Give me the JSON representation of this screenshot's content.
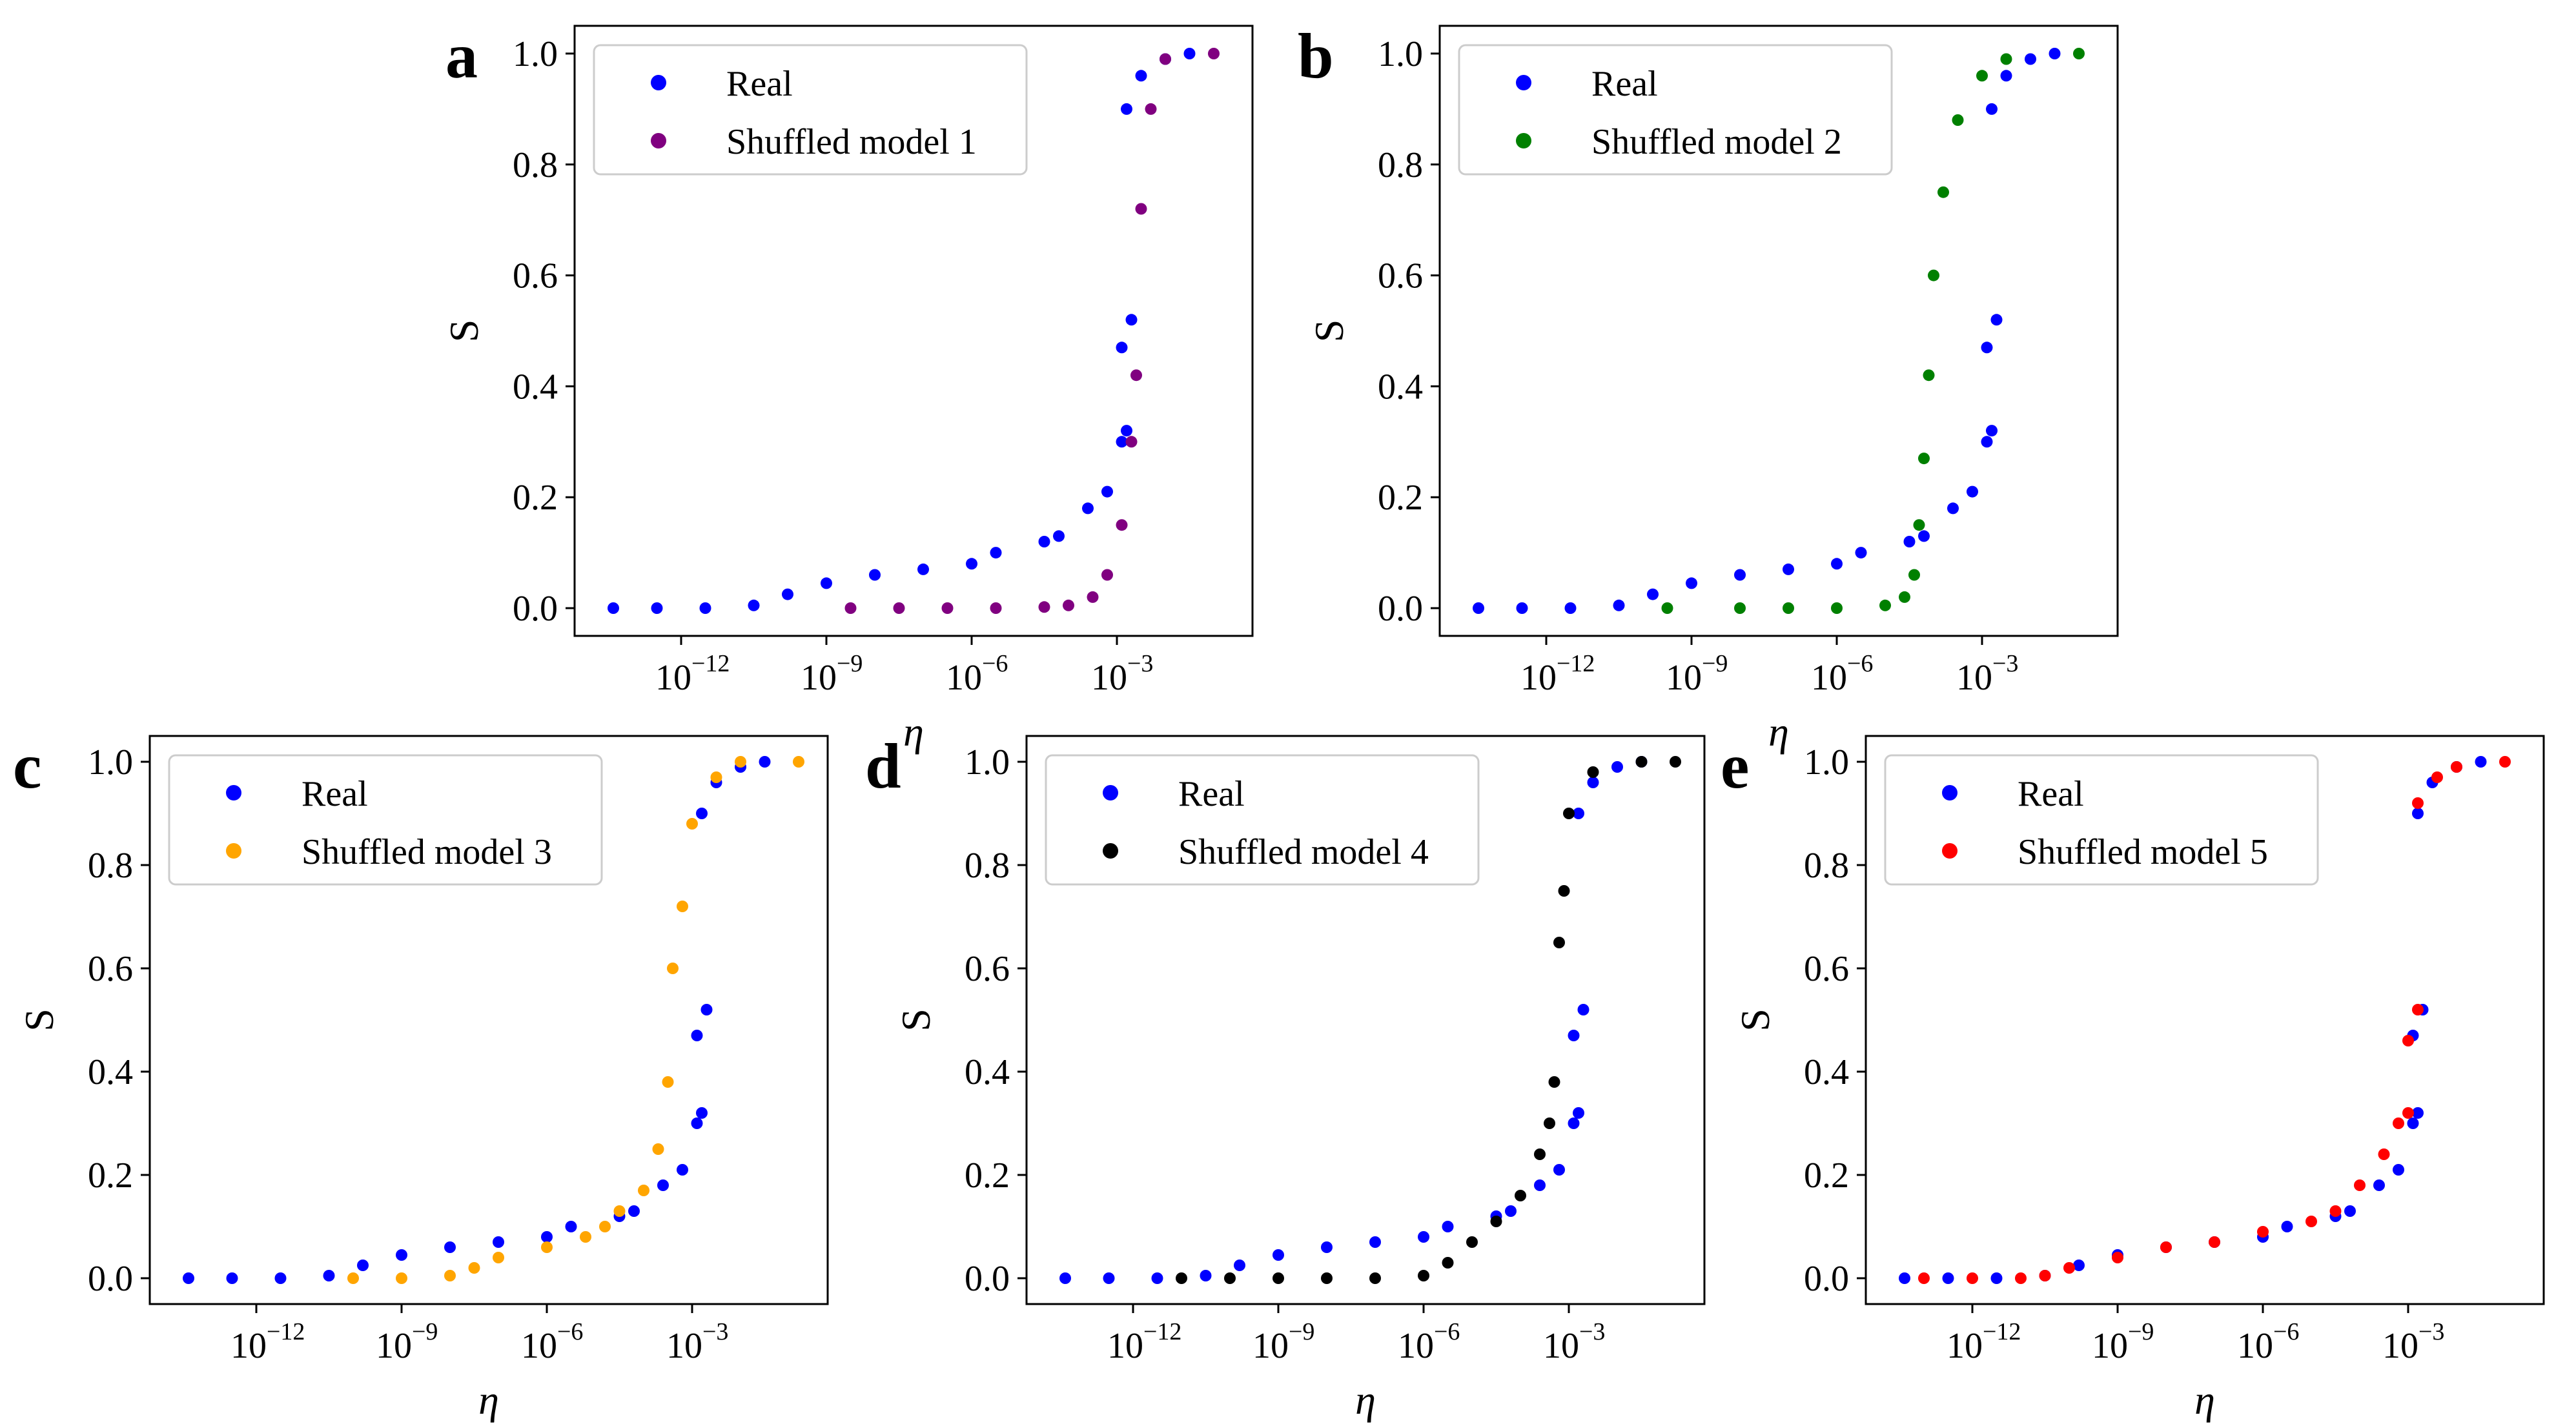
{
  "chart_data": [
    {
      "type": "scatter",
      "panel": "a",
      "xlabel": "η",
      "ylabel": "S",
      "xscale": "log",
      "xlim_log10": [
        -14.2,
        -0.2
      ],
      "ylim": [
        -0.05,
        1.05
      ],
      "x_ticks": [
        {
          "base": "10",
          "exp": "−12",
          "value": -12
        },
        {
          "base": "10",
          "exp": "−9",
          "value": -9
        },
        {
          "base": "10",
          "exp": "−6",
          "value": -6
        },
        {
          "base": "10",
          "exp": "−3",
          "value": -3
        }
      ],
      "y_ticks": [
        "0.0",
        "0.2",
        "0.4",
        "0.6",
        "0.8",
        "1.0"
      ],
      "series": [
        {
          "name": "Real",
          "color": "#0000ff",
          "points": [
            [
              -13.4,
              0.0
            ],
            [
              -12.5,
              0.0
            ],
            [
              -11.5,
              0.0
            ],
            [
              -10.5,
              0.005
            ],
            [
              -9.8,
              0.025
            ],
            [
              -9.0,
              0.045
            ],
            [
              -8.0,
              0.06
            ],
            [
              -7.0,
              0.07
            ],
            [
              -6.0,
              0.08
            ],
            [
              -5.5,
              0.1
            ],
            [
              -4.5,
              0.12
            ],
            [
              -4.2,
              0.13
            ],
            [
              -3.6,
              0.18
            ],
            [
              -3.2,
              0.21
            ],
            [
              -2.9,
              0.3
            ],
            [
              -2.8,
              0.32
            ],
            [
              -2.9,
              0.47
            ],
            [
              -2.7,
              0.52
            ],
            [
              -2.8,
              0.9
            ],
            [
              -2.5,
              0.96
            ],
            [
              -2.0,
              0.99
            ],
            [
              -1.5,
              1.0
            ]
          ]
        },
        {
          "name": "Shuffled model 1",
          "color": "#800080",
          "points": [
            [
              -8.5,
              0.0
            ],
            [
              -7.5,
              0.0
            ],
            [
              -6.5,
              0.0
            ],
            [
              -5.5,
              0.0
            ],
            [
              -4.5,
              0.002
            ],
            [
              -4.0,
              0.005
            ],
            [
              -3.5,
              0.02
            ],
            [
              -3.2,
              0.06
            ],
            [
              -2.9,
              0.15
            ],
            [
              -2.7,
              0.3
            ],
            [
              -2.6,
              0.42
            ],
            [
              -2.5,
              0.72
            ],
            [
              -2.3,
              0.9
            ],
            [
              -2.0,
              0.99
            ],
            [
              -1.0,
              1.0
            ]
          ]
        }
      ],
      "legend": [
        "Real",
        "Shuffled model 1"
      ],
      "legend_loc": "upper left"
    },
    {
      "type": "scatter",
      "panel": "b",
      "xlabel": "η",
      "ylabel": "S",
      "xscale": "log",
      "xlim_log10": [
        -14.2,
        -0.2
      ],
      "ylim": [
        -0.05,
        1.05
      ],
      "x_ticks": [
        {
          "base": "10",
          "exp": "−12",
          "value": -12
        },
        {
          "base": "10",
          "exp": "−9",
          "value": -9
        },
        {
          "base": "10",
          "exp": "−6",
          "value": -6
        },
        {
          "base": "10",
          "exp": "−3",
          "value": -3
        }
      ],
      "y_ticks": [
        "0.0",
        "0.2",
        "0.4",
        "0.6",
        "0.8",
        "1.0"
      ],
      "series": [
        {
          "name": "Real",
          "color": "#0000ff",
          "points": [
            [
              -13.4,
              0.0
            ],
            [
              -12.5,
              0.0
            ],
            [
              -11.5,
              0.0
            ],
            [
              -10.5,
              0.005
            ],
            [
              -9.8,
              0.025
            ],
            [
              -9.0,
              0.045
            ],
            [
              -8.0,
              0.06
            ],
            [
              -7.0,
              0.07
            ],
            [
              -6.0,
              0.08
            ],
            [
              -5.5,
              0.1
            ],
            [
              -4.5,
              0.12
            ],
            [
              -4.2,
              0.13
            ],
            [
              -3.6,
              0.18
            ],
            [
              -3.2,
              0.21
            ],
            [
              -2.9,
              0.3
            ],
            [
              -2.8,
              0.32
            ],
            [
              -2.9,
              0.47
            ],
            [
              -2.7,
              0.52
            ],
            [
              -2.8,
              0.9
            ],
            [
              -2.5,
              0.96
            ],
            [
              -2.0,
              0.99
            ],
            [
              -1.5,
              1.0
            ]
          ]
        },
        {
          "name": "Shuffled model 2",
          "color": "#008000",
          "points": [
            [
              -9.5,
              0.0
            ],
            [
              -8.0,
              0.0
            ],
            [
              -7.0,
              0.0
            ],
            [
              -6.0,
              0.0
            ],
            [
              -5.0,
              0.005
            ],
            [
              -4.6,
              0.02
            ],
            [
              -4.4,
              0.06
            ],
            [
              -4.3,
              0.15
            ],
            [
              -4.2,
              0.27
            ],
            [
              -4.1,
              0.42
            ],
            [
              -4.0,
              0.6
            ],
            [
              -3.8,
              0.75
            ],
            [
              -3.5,
              0.88
            ],
            [
              -3.0,
              0.96
            ],
            [
              -2.5,
              0.99
            ],
            [
              -1.0,
              1.0
            ]
          ]
        }
      ],
      "legend": [
        "Real",
        "Shuffled model 2"
      ],
      "legend_loc": "upper left"
    },
    {
      "type": "scatter",
      "panel": "c",
      "xlabel": "η",
      "ylabel": "S",
      "xscale": "log",
      "xlim_log10": [
        -14.2,
        -0.2
      ],
      "ylim": [
        -0.05,
        1.05
      ],
      "x_ticks": [
        {
          "base": "10",
          "exp": "−12",
          "value": -12
        },
        {
          "base": "10",
          "exp": "−9",
          "value": -9
        },
        {
          "base": "10",
          "exp": "−6",
          "value": -6
        },
        {
          "base": "10",
          "exp": "−3",
          "value": -3
        }
      ],
      "y_ticks": [
        "0.0",
        "0.2",
        "0.4",
        "0.6",
        "0.8",
        "1.0"
      ],
      "series": [
        {
          "name": "Real",
          "color": "#0000ff",
          "points": [
            [
              -13.4,
              0.0
            ],
            [
              -12.5,
              0.0
            ],
            [
              -11.5,
              0.0
            ],
            [
              -10.5,
              0.005
            ],
            [
              -9.8,
              0.025
            ],
            [
              -9.0,
              0.045
            ],
            [
              -8.0,
              0.06
            ],
            [
              -7.0,
              0.07
            ],
            [
              -6.0,
              0.08
            ],
            [
              -5.5,
              0.1
            ],
            [
              -4.5,
              0.12
            ],
            [
              -4.2,
              0.13
            ],
            [
              -3.6,
              0.18
            ],
            [
              -3.2,
              0.21
            ],
            [
              -2.9,
              0.3
            ],
            [
              -2.8,
              0.32
            ],
            [
              -2.9,
              0.47
            ],
            [
              -2.7,
              0.52
            ],
            [
              -2.8,
              0.9
            ],
            [
              -2.5,
              0.96
            ],
            [
              -2.0,
              0.99
            ],
            [
              -1.5,
              1.0
            ]
          ]
        },
        {
          "name": "Shuffled model 3",
          "color": "#ffa500",
          "points": [
            [
              -10.0,
              0.0
            ],
            [
              -9.0,
              0.0
            ],
            [
              -8.0,
              0.005
            ],
            [
              -7.5,
              0.02
            ],
            [
              -7.0,
              0.04
            ],
            [
              -6.0,
              0.06
            ],
            [
              -5.2,
              0.08
            ],
            [
              -4.8,
              0.1
            ],
            [
              -4.5,
              0.13
            ],
            [
              -4.0,
              0.17
            ],
            [
              -3.7,
              0.25
            ],
            [
              -3.5,
              0.38
            ],
            [
              -3.4,
              0.6
            ],
            [
              -3.2,
              0.72
            ],
            [
              -3.0,
              0.88
            ],
            [
              -2.5,
              0.97
            ],
            [
              -2.0,
              1.0
            ],
            [
              -0.8,
              1.0
            ]
          ]
        }
      ],
      "legend": [
        "Real",
        "Shuffled model 3"
      ],
      "legend_loc": "upper left"
    },
    {
      "type": "scatter",
      "panel": "d",
      "xlabel": "η",
      "ylabel": "S",
      "xscale": "log",
      "xlim_log10": [
        -14.2,
        -0.2
      ],
      "ylim": [
        -0.05,
        1.05
      ],
      "x_ticks": [
        {
          "base": "10",
          "exp": "−12",
          "value": -12
        },
        {
          "base": "10",
          "exp": "−9",
          "value": -9
        },
        {
          "base": "10",
          "exp": "−6",
          "value": -6
        },
        {
          "base": "10",
          "exp": "−3",
          "value": -3
        }
      ],
      "y_ticks": [
        "0.0",
        "0.2",
        "0.4",
        "0.6",
        "0.8",
        "1.0"
      ],
      "series": [
        {
          "name": "Real",
          "color": "#0000ff",
          "points": [
            [
              -13.4,
              0.0
            ],
            [
              -12.5,
              0.0
            ],
            [
              -11.5,
              0.0
            ],
            [
              -10.5,
              0.005
            ],
            [
              -9.8,
              0.025
            ],
            [
              -9.0,
              0.045
            ],
            [
              -8.0,
              0.06
            ],
            [
              -7.0,
              0.07
            ],
            [
              -6.0,
              0.08
            ],
            [
              -5.5,
              0.1
            ],
            [
              -4.5,
              0.12
            ],
            [
              -4.2,
              0.13
            ],
            [
              -3.6,
              0.18
            ],
            [
              -3.2,
              0.21
            ],
            [
              -2.9,
              0.3
            ],
            [
              -2.8,
              0.32
            ],
            [
              -2.9,
              0.47
            ],
            [
              -2.7,
              0.52
            ],
            [
              -2.8,
              0.9
            ],
            [
              -2.5,
              0.96
            ],
            [
              -2.0,
              0.99
            ],
            [
              -1.5,
              1.0
            ]
          ]
        },
        {
          "name": "Shuffled model 4",
          "color": "#000000",
          "points": [
            [
              -11.0,
              0.0
            ],
            [
              -10.0,
              0.0
            ],
            [
              -9.0,
              0.0
            ],
            [
              -8.0,
              0.0
            ],
            [
              -7.0,
              0.0
            ],
            [
              -6.0,
              0.005
            ],
            [
              -5.5,
              0.03
            ],
            [
              -5.0,
              0.07
            ],
            [
              -4.5,
              0.11
            ],
            [
              -4.0,
              0.16
            ],
            [
              -3.6,
              0.24
            ],
            [
              -3.4,
              0.3
            ],
            [
              -3.3,
              0.38
            ],
            [
              -3.2,
              0.65
            ],
            [
              -3.1,
              0.75
            ],
            [
              -3.0,
              0.9
            ],
            [
              -2.5,
              0.98
            ],
            [
              -1.5,
              1.0
            ],
            [
              -0.8,
              1.0
            ]
          ]
        }
      ],
      "legend": [
        "Real",
        "Shuffled model 4"
      ],
      "legend_loc": "upper left"
    },
    {
      "type": "scatter",
      "panel": "e",
      "xlabel": "η",
      "ylabel": "S",
      "xscale": "log",
      "xlim_log10": [
        -14.2,
        -0.2
      ],
      "ylim": [
        -0.05,
        1.05
      ],
      "x_ticks": [
        {
          "base": "10",
          "exp": "−12",
          "value": -12
        },
        {
          "base": "10",
          "exp": "−9",
          "value": -9
        },
        {
          "base": "10",
          "exp": "−6",
          "value": -6
        },
        {
          "base": "10",
          "exp": "−3",
          "value": -3
        }
      ],
      "y_ticks": [
        "0.0",
        "0.2",
        "0.4",
        "0.6",
        "0.8",
        "1.0"
      ],
      "series": [
        {
          "name": "Real",
          "color": "#0000ff",
          "points": [
            [
              -13.4,
              0.0
            ],
            [
              -12.5,
              0.0
            ],
            [
              -11.5,
              0.0
            ],
            [
              -10.5,
              0.005
            ],
            [
              -9.8,
              0.025
            ],
            [
              -9.0,
              0.045
            ],
            [
              -8.0,
              0.06
            ],
            [
              -7.0,
              0.07
            ],
            [
              -6.0,
              0.08
            ],
            [
              -5.5,
              0.1
            ],
            [
              -4.5,
              0.12
            ],
            [
              -4.2,
              0.13
            ],
            [
              -3.6,
              0.18
            ],
            [
              -3.2,
              0.21
            ],
            [
              -2.9,
              0.3
            ],
            [
              -2.8,
              0.32
            ],
            [
              -2.9,
              0.47
            ],
            [
              -2.7,
              0.52
            ],
            [
              -2.8,
              0.9
            ],
            [
              -2.5,
              0.96
            ],
            [
              -2.0,
              0.99
            ],
            [
              -1.5,
              1.0
            ]
          ]
        },
        {
          "name": "Shuffled model 5",
          "color": "#ff0000",
          "points": [
            [
              -13.0,
              0.0
            ],
            [
              -12.0,
              0.0
            ],
            [
              -11.0,
              0.0
            ],
            [
              -10.5,
              0.005
            ],
            [
              -10.0,
              0.02
            ],
            [
              -9.0,
              0.04
            ],
            [
              -8.0,
              0.06
            ],
            [
              -7.0,
              0.07
            ],
            [
              -6.0,
              0.09
            ],
            [
              -5.0,
              0.11
            ],
            [
              -4.5,
              0.13
            ],
            [
              -4.0,
              0.18
            ],
            [
              -3.5,
              0.24
            ],
            [
              -3.2,
              0.3
            ],
            [
              -3.0,
              0.32
            ],
            [
              -3.0,
              0.46
            ],
            [
              -2.8,
              0.52
            ],
            [
              -2.8,
              0.92
            ],
            [
              -2.4,
              0.97
            ],
            [
              -2.0,
              0.99
            ],
            [
              -1.0,
              1.0
            ]
          ]
        }
      ],
      "legend": [
        "Real",
        "Shuffled model 5"
      ],
      "legend_loc": "upper left"
    }
  ]
}
